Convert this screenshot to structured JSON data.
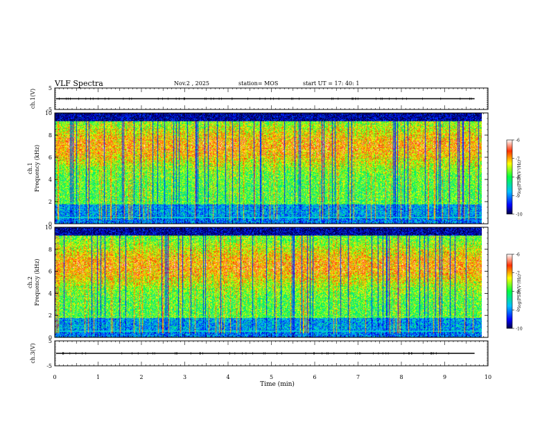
{
  "header": {
    "title": "VLF Spectra",
    "date": "Nov.2 , 2025",
    "station": "station= MOS",
    "start_ut": "start UT = 17: 40: 1"
  },
  "chart_data": [
    {
      "type": "line",
      "name": "ch1-waveform",
      "ylabel": "ch.1(V)",
      "ylim": [
        -5,
        5
      ],
      "yticks": [
        "5",
        "-5"
      ],
      "xlim": [
        0,
        10
      ],
      "level": 0
    },
    {
      "type": "heatmap",
      "name": "ch1-spectrogram",
      "ylabel_line1": "ch.1",
      "ylabel_line2": "Frequency (kHz)",
      "ylim": [
        0,
        10
      ],
      "yticks": [
        "0",
        "2",
        "4",
        "6",
        "8",
        "10"
      ],
      "xlim": [
        0,
        10
      ],
      "colorbar": {
        "label": "log(PSD)(V²/Hz)",
        "range": [
          -10,
          -6
        ],
        "ticks": [
          "-6",
          "-7",
          "-8",
          "-9",
          "-10"
        ]
      },
      "seed": 7,
      "green_band_center_khz": 7.0
    },
    {
      "type": "heatmap",
      "name": "ch2-spectrogram",
      "ylabel_line1": "ch.2",
      "ylabel_line2": "Frequency (kHz)",
      "ylim": [
        0,
        10
      ],
      "yticks": [
        "0",
        "2",
        "4",
        "6",
        "8",
        "10"
      ],
      "xlim": [
        0,
        10
      ],
      "colorbar": {
        "label": "log(PSD)(V²/Hz)",
        "range": [
          -10,
          -6
        ],
        "ticks": [
          "-6",
          "-7",
          "-8",
          "-9",
          "-10"
        ]
      },
      "seed": 19,
      "green_band_center_khz": 6.5
    },
    {
      "type": "line",
      "name": "ch3-waveform",
      "ylabel": "ch.3(V)",
      "ylim": [
        -5,
        5
      ],
      "yticks": [
        "5",
        "-5"
      ],
      "xlim": [
        0,
        10
      ],
      "level": 0
    }
  ],
  "xaxis": {
    "label": "Time (min)",
    "ticks": [
      "0",
      "1",
      "2",
      "3",
      "4",
      "5",
      "6",
      "7",
      "8",
      "9",
      "10"
    ],
    "range": [
      0,
      10
    ],
    "data_end": 9.85
  }
}
